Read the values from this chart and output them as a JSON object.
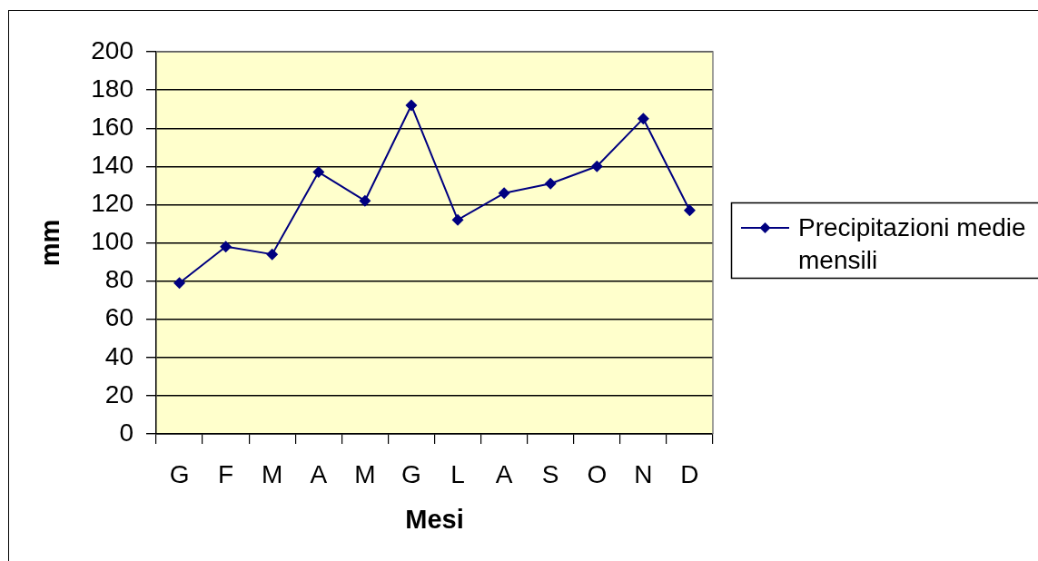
{
  "chart_data": {
    "type": "line",
    "xlabel": "Mesi",
    "ylabel": "mm",
    "categories": [
      "G",
      "F",
      "M",
      "A",
      "M",
      "G",
      "L",
      "A",
      "S",
      "O",
      "N",
      "D"
    ],
    "series": [
      {
        "name": "Precipitazioni medie mensili",
        "color": "#000080",
        "values": [
          79,
          98,
          94,
          137,
          122,
          172,
          112,
          126,
          131,
          140,
          165,
          117
        ]
      }
    ],
    "ylim": [
      0,
      200
    ],
    "yticks": [
      0,
      20,
      40,
      60,
      80,
      100,
      120,
      140,
      160,
      180,
      200
    ],
    "grid": "y",
    "legend": "right",
    "marker": "diamond",
    "line_style": "solid"
  }
}
